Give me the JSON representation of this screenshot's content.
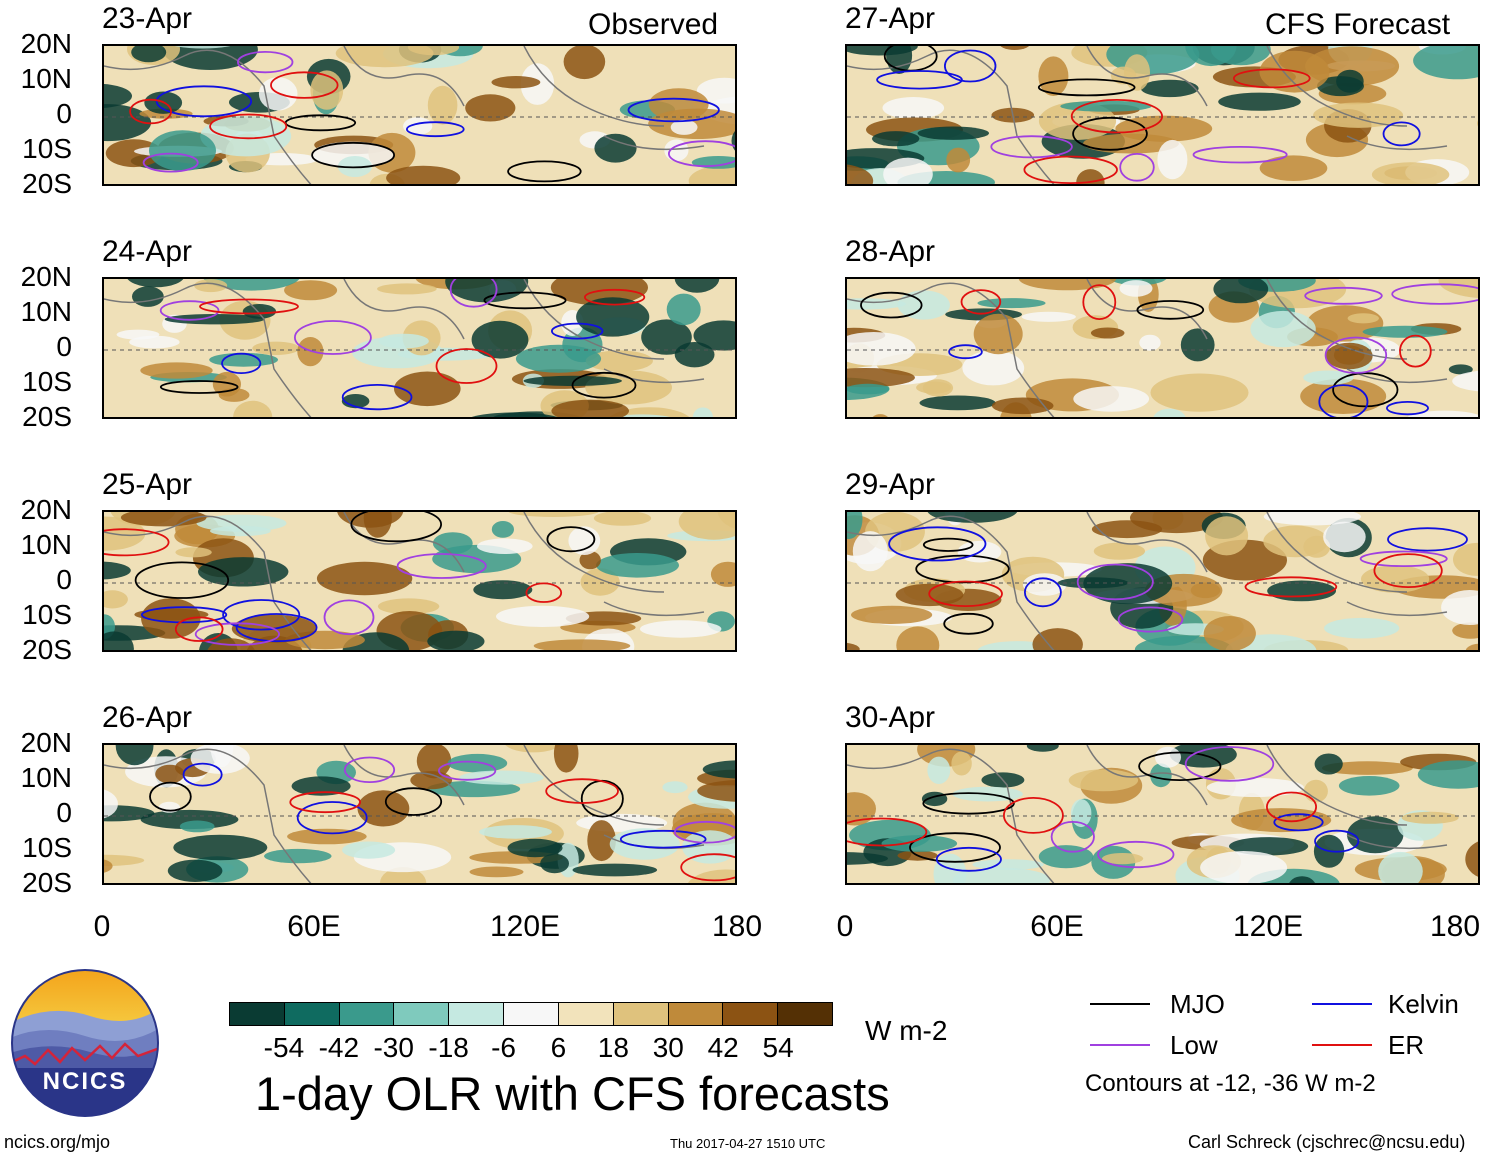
{
  "headers": {
    "observed": "Observed",
    "forecast": "CFS Forecast"
  },
  "panels_left": [
    {
      "date": "23-Apr"
    },
    {
      "date": "24-Apr"
    },
    {
      "date": "25-Apr"
    },
    {
      "date": "26-Apr"
    }
  ],
  "panels_right": [
    {
      "date": "27-Apr"
    },
    {
      "date": "28-Apr"
    },
    {
      "date": "29-Apr"
    },
    {
      "date": "30-Apr"
    }
  ],
  "lat_labels": [
    "20N",
    "10N",
    "0",
    "10S",
    "20S"
  ],
  "lon_labels": [
    "0",
    "60E",
    "120E",
    "180"
  ],
  "colorbar": {
    "colors": [
      "#0a3b33",
      "#0f6b60",
      "#3a9a8c",
      "#7fcabd",
      "#c5e9e1",
      "#f7f7f7",
      "#f2e3bb",
      "#dfc27d",
      "#bf8a3a",
      "#8c5313",
      "#543005"
    ],
    "labels": [
      "-54",
      "-42",
      "-30",
      "-18",
      "-6",
      "6",
      "18",
      "30",
      "42",
      "54"
    ],
    "unit": "W m-2"
  },
  "title": "1-day OLR with CFS forecasts",
  "logo_text": "NCICS",
  "legend": {
    "items": [
      {
        "label": "MJO",
        "color": "#000000"
      },
      {
        "label": "Kelvin",
        "color": "#1010e0"
      },
      {
        "label": "Low",
        "color": "#a040e0"
      },
      {
        "label": "ER",
        "color": "#e01010"
      }
    ],
    "note": "Contours at -12, -36 W m-2"
  },
  "footer": {
    "url": "ncics.org/mjo",
    "timestamp": "Thu 2017-04-27 1510 UTC",
    "credit": "Carl Schreck (cjschrec@ncsu.edu)"
  }
}
